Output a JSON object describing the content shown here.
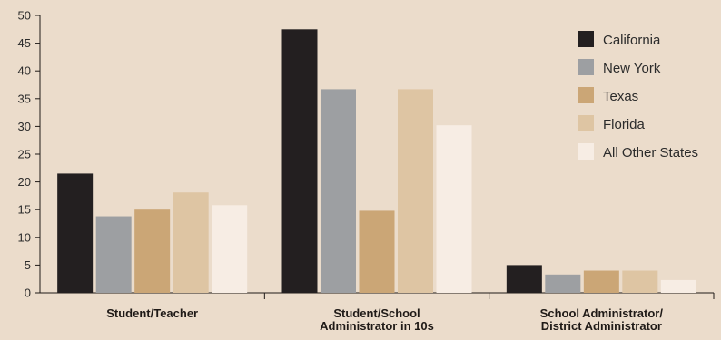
{
  "chart_data": {
    "type": "bar",
    "categories": [
      [
        "Student/Teacher"
      ],
      [
        "Student/School",
        "Administrator in 10s"
      ],
      [
        "School Administrator/",
        "District Administrator"
      ]
    ],
    "series": [
      {
        "name": "California",
        "values": [
          21.5,
          47.5,
          5.0
        ],
        "color": "#231F20"
      },
      {
        "name": "New York",
        "values": [
          13.8,
          36.7,
          3.3
        ],
        "color": "#9D9FA2"
      },
      {
        "name": "Texas",
        "values": [
          15.0,
          14.8,
          4.0
        ],
        "color": "#CBA676"
      },
      {
        "name": "Florida",
        "values": [
          18.1,
          36.7,
          4.0
        ],
        "color": "#DEC5A3"
      },
      {
        "name": "All Other States",
        "values": [
          15.8,
          30.2,
          2.3
        ],
        "color": "#F7EDE4"
      }
    ],
    "ylim": [
      0,
      50
    ],
    "yticks": [
      0,
      5,
      10,
      15,
      20,
      25,
      30,
      35,
      40,
      45,
      50
    ],
    "grid": false,
    "legend_position": "right",
    "title": "",
    "xlabel": "",
    "ylabel": ""
  }
}
